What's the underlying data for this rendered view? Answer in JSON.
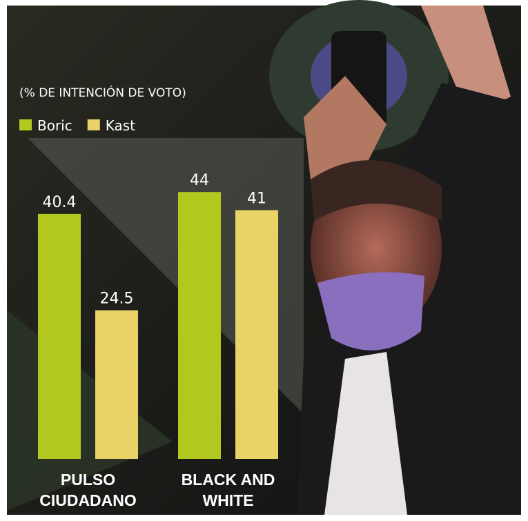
{
  "chart_data": {
    "type": "bar",
    "subtitle": "(% DE INTENCIÓN DE VOTO)",
    "categories": [
      "PULSO CIUDADANO",
      "BLACK AND WHITE"
    ],
    "series": [
      {
        "name": "Boric",
        "color": "#b3c81e",
        "values": [
          40.4,
          44
        ]
      },
      {
        "name": "Kast",
        "color": "#ead366",
        "values": [
          24.5,
          41
        ]
      }
    ]
  }
}
